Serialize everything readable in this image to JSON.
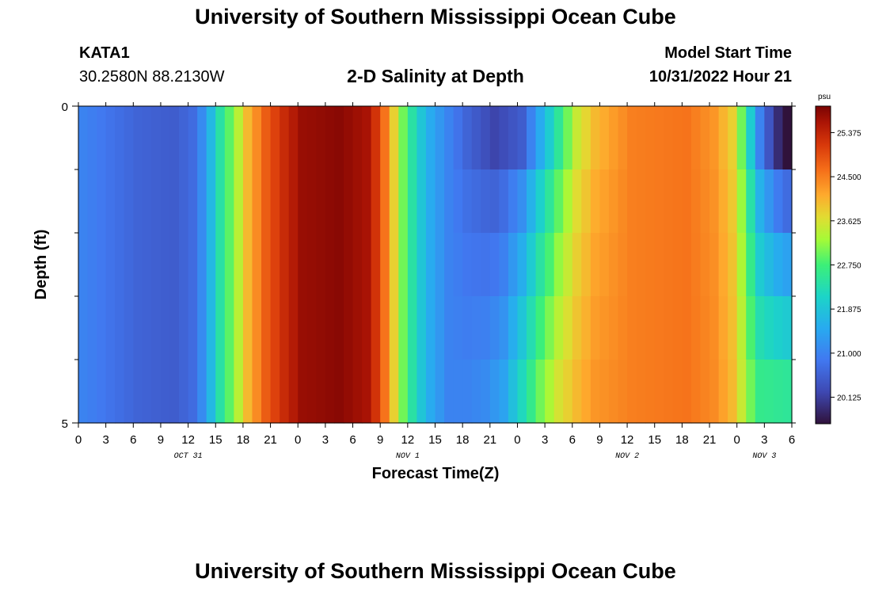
{
  "header": {
    "title": "University of Southern Mississippi Ocean Cube",
    "station": "KATA1",
    "coords": "30.2580N  88.2130W",
    "subtitle": "2-D Salinity at Depth",
    "start_label": "Model Start Time",
    "start_value": "10/31/2022 Hour 21"
  },
  "footer": {
    "title": "University of Southern Mississippi Ocean Cube"
  },
  "chart_data": {
    "type": "heatmap",
    "title": "2-D Salinity at Depth",
    "xlabel": "Forecast Time(Z)",
    "ylabel": "Depth (ft)",
    "x_ticks": [
      "0",
      "3",
      "6",
      "9",
      "12",
      "15",
      "18",
      "21",
      "0",
      "3",
      "6",
      "9",
      "12",
      "15",
      "18",
      "21",
      "0",
      "3",
      "6",
      "9",
      "12",
      "15",
      "18",
      "21",
      "0",
      "3",
      "6"
    ],
    "date_labels": [
      {
        "label": "OCT 31",
        "hour_index": 4
      },
      {
        "label": "NOV 1",
        "hour_index": 12
      },
      {
        "label": "NOV 2",
        "hour_index": 20
      },
      {
        "label": "NOV 3",
        "hour_index": 25
      }
    ],
    "y_ticks": [
      "0",
      "5"
    ],
    "ylim": [
      0,
      5
    ],
    "hours": 78,
    "depth_layers": 5,
    "colorbar": {
      "unit": "psu",
      "min": 19.6,
      "max": 25.9,
      "ticks": [
        "25.375",
        "24.500",
        "23.625",
        "22.750",
        "21.875",
        "21.000",
        "20.125"
      ],
      "tick_values": [
        25.375,
        24.5,
        23.625,
        22.75,
        21.875,
        21.0,
        20.125
      ]
    },
    "surface_profile": [
      [
        0,
        21.0
      ],
      [
        6,
        20.6
      ],
      [
        10,
        20.5
      ],
      [
        12,
        20.7
      ],
      [
        13,
        21.1
      ],
      [
        14,
        21.7
      ],
      [
        15,
        22.4
      ],
      [
        16,
        22.9
      ],
      [
        17,
        23.4
      ],
      [
        18,
        24.0
      ],
      [
        20,
        24.8
      ],
      [
        22,
        25.3
      ],
      [
        24,
        25.7
      ],
      [
        28,
        25.8
      ],
      [
        31,
        25.6
      ],
      [
        32,
        25.2
      ],
      [
        33,
        24.6
      ],
      [
        34,
        23.8
      ],
      [
        35,
        23.0
      ],
      [
        36,
        22.4
      ],
      [
        37,
        21.9
      ],
      [
        38,
        21.5
      ],
      [
        40,
        21.0
      ],
      [
        42,
        20.6
      ],
      [
        45,
        20.2
      ],
      [
        48,
        20.5
      ],
      [
        49,
        21.0
      ],
      [
        50,
        21.5
      ],
      [
        51,
        22.0
      ],
      [
        52,
        22.5
      ],
      [
        53,
        23.0
      ],
      [
        54,
        23.5
      ],
      [
        56,
        24.0
      ],
      [
        60,
        24.5
      ],
      [
        66,
        24.6
      ],
      [
        69,
        24.3
      ],
      [
        71,
        23.8
      ],
      [
        72,
        23.0
      ],
      [
        73,
        22.0
      ],
      [
        74,
        21.0
      ],
      [
        75,
        20.4
      ],
      [
        76,
        19.9
      ],
      [
        77,
        19.6
      ]
    ],
    "deep_profile": [
      [
        0,
        21.0
      ],
      [
        6,
        20.6
      ],
      [
        10,
        20.5
      ],
      [
        12,
        20.7
      ],
      [
        13,
        21.1
      ],
      [
        14,
        21.7
      ],
      [
        15,
        22.4
      ],
      [
        16,
        22.9
      ],
      [
        17,
        23.4
      ],
      [
        18,
        24.0
      ],
      [
        20,
        24.8
      ],
      [
        22,
        25.3
      ],
      [
        24,
        25.7
      ],
      [
        28,
        25.8
      ],
      [
        31,
        25.6
      ],
      [
        32,
        25.2
      ],
      [
        33,
        24.6
      ],
      [
        34,
        23.8
      ],
      [
        35,
        23.0
      ],
      [
        36,
        22.4
      ],
      [
        37,
        21.9
      ],
      [
        38,
        21.5
      ],
      [
        40,
        21.0
      ],
      [
        42,
        21.0
      ],
      [
        44,
        21.1
      ],
      [
        46,
        21.4
      ],
      [
        48,
        22.2
      ],
      [
        50,
        23.0
      ],
      [
        52,
        23.6
      ],
      [
        54,
        24.0
      ],
      [
        56,
        24.3
      ],
      [
        60,
        24.5
      ],
      [
        66,
        24.6
      ],
      [
        69,
        24.4
      ],
      [
        71,
        24.0
      ],
      [
        72,
        23.5
      ],
      [
        73,
        23.0
      ],
      [
        74,
        22.6
      ],
      [
        77,
        22.5
      ]
    ]
  }
}
